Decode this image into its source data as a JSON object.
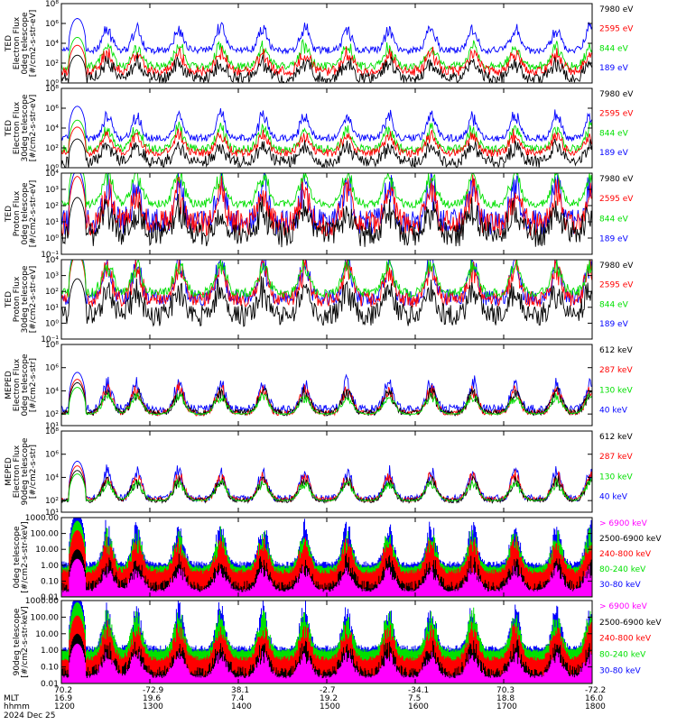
{
  "date_label": "2024 Dec 25",
  "footer": {
    "row_labels": [
      "",
      "MLT",
      "hhmm"
    ],
    "ticks": [
      {
        "t": 1200,
        "lat": "70.2",
        "mlt": "16.9",
        "hhmm": "1200"
      },
      {
        "t": 1300,
        "lat": "-72.9",
        "mlt": "19.6",
        "hhmm": "1300"
      },
      {
        "t": 1400,
        "lat": "38.1",
        "mlt": "7.4",
        "hhmm": "1400"
      },
      {
        "t": 1500,
        "lat": "-2.7",
        "mlt": "19.2",
        "hhmm": "1500"
      },
      {
        "t": 1600,
        "lat": "-34.1",
        "mlt": "7.5",
        "hhmm": "1600"
      },
      {
        "t": 1700,
        "lat": "70.3",
        "mlt": "18.8",
        "hhmm": "1700"
      },
      {
        "t": 1800,
        "lat": "-72.2",
        "mlt": "16.0",
        "hhmm": "1800"
      }
    ]
  },
  "colors": {
    "black": "#000000",
    "red": "#ff0000",
    "green": "#00e000",
    "blue": "#0000ff",
    "magenta": "#ff00ff"
  },
  "chart_data": [
    {
      "type": "line",
      "ylabel": [
        "TED",
        "Electron Flux",
        "0deg telescope",
        "[#/cm2-s-str-eV]"
      ],
      "ytick_labels": [
        "10⁰",
        "10²",
        "10⁴",
        "10⁶",
        "10⁸"
      ],
      "ytick_exponents": [
        0,
        2,
        4,
        6,
        8
      ],
      "ylim_exp": [
        0,
        8
      ],
      "xlim": [
        1200,
        1800
      ],
      "legend": [
        {
          "label": "7980 eV",
          "color": "#000000"
        },
        {
          "label": "2595 eV",
          "color": "#ff0000"
        },
        {
          "label": "844 eV",
          "color": "#00e000"
        },
        {
          "label": "189 eV",
          "color": "#0000ff"
        }
      ],
      "series": [
        {
          "color": "#0000ff",
          "base": 3.3,
          "noise": 0.35
        },
        {
          "color": "#00e000",
          "base": 1.7,
          "noise": 0.4
        },
        {
          "color": "#ff0000",
          "base": 1.2,
          "noise": 0.5
        },
        {
          "color": "#000000",
          "base": 0.5,
          "noise": 0.6
        }
      ]
    },
    {
      "type": "line",
      "ylabel": [
        "TED",
        "Electron Flux",
        "30deg telescope",
        "[#/cm2-s-str-eV]"
      ],
      "ytick_labels": [
        "10⁰",
        "10²",
        "10⁴",
        "10⁶",
        "10⁸"
      ],
      "ytick_exponents": [
        0,
        2,
        4,
        6,
        8
      ],
      "ylim_exp": [
        0,
        8
      ],
      "xlim": [
        1200,
        1800
      ],
      "legend": [
        {
          "label": "7980 eV",
          "color": "#000000"
        },
        {
          "label": "2595 eV",
          "color": "#ff0000"
        },
        {
          "label": "844 eV",
          "color": "#00e000"
        },
        {
          "label": "189 eV",
          "color": "#0000ff"
        }
      ],
      "series": [
        {
          "color": "#0000ff",
          "base": 3.0,
          "noise": 0.35
        },
        {
          "color": "#00e000",
          "base": 1.9,
          "noise": 0.4
        },
        {
          "color": "#ff0000",
          "base": 1.5,
          "noise": 0.4
        },
        {
          "color": "#000000",
          "base": 0.6,
          "noise": 0.6
        }
      ]
    },
    {
      "type": "line",
      "ylabel": [
        "TED",
        "Proton Flux",
        "0deg telescope",
        "[#/cm2-s-str-eV]"
      ],
      "ytick_labels": [
        "10⁻¹",
        "10⁰",
        "10¹",
        "10²",
        "10³",
        "10⁴"
      ],
      "ytick_exponents": [
        -1,
        0,
        1,
        2,
        3,
        4
      ],
      "ylim_exp": [
        -1,
        4
      ],
      "xlim": [
        1200,
        1800
      ],
      "legend": [
        {
          "label": "7980 eV",
          "color": "#000000"
        },
        {
          "label": "2595 eV",
          "color": "#ff0000"
        },
        {
          "label": "844 eV",
          "color": "#00e000"
        },
        {
          "label": "189 eV",
          "color": "#0000ff"
        }
      ],
      "series": [
        {
          "color": "#0000ff",
          "base": 1.0,
          "noise": 0.8
        },
        {
          "color": "#ff0000",
          "base": 0.9,
          "noise": 0.8
        },
        {
          "color": "#00e000",
          "base": 2.1,
          "noise": 0.25
        },
        {
          "color": "#000000",
          "base": 0.2,
          "noise": 0.8
        }
      ]
    },
    {
      "type": "line",
      "ylabel": [
        "TED",
        "Proton Flux",
        "30deg telescope",
        "[#/cm2-s-str-eV]"
      ],
      "ytick_labels": [
        "10⁻¹",
        "10⁰",
        "10¹",
        "10²",
        "10³",
        "10⁴"
      ],
      "ytick_exponents": [
        -1,
        0,
        1,
        2,
        3,
        4
      ],
      "ylim_exp": [
        -1,
        4
      ],
      "xlim": [
        1200,
        1800
      ],
      "legend": [
        {
          "label": "7980 eV",
          "color": "#000000"
        },
        {
          "label": "2595 eV",
          "color": "#ff0000"
        },
        {
          "label": "844 eV",
          "color": "#00e000"
        },
        {
          "label": "189 eV",
          "color": "#0000ff"
        }
      ],
      "series": [
        {
          "color": "#0000ff",
          "base": 1.6,
          "noise": 0.5
        },
        {
          "color": "#ff0000",
          "base": 1.5,
          "noise": 0.5
        },
        {
          "color": "#00e000",
          "base": 1.9,
          "noise": 0.3
        },
        {
          "color": "#000000",
          "base": 0.5,
          "noise": 0.7
        }
      ]
    },
    {
      "type": "line",
      "ylabel": [
        "MEPED",
        "Electron Flux",
        "0deg telescope",
        "[#/cm2-s-str]"
      ],
      "ytick_labels": [
        "10¹",
        "10²",
        "10⁴",
        "10⁶",
        "10⁸"
      ],
      "ytick_exponents": [
        1,
        2,
        4,
        6,
        8
      ],
      "ylim_exp": [
        1,
        8
      ],
      "xlim": [
        1200,
        1800
      ],
      "legend": [
        {
          "label": "612 keV",
          "color": "#000000"
        },
        {
          "label": "287 keV",
          "color": "#ff0000"
        },
        {
          "label": "130 keV",
          "color": "#00e000"
        },
        {
          "label": "40 keV",
          "color": "#0000ff"
        }
      ],
      "series": [
        {
          "color": "#0000ff",
          "base": 2.4,
          "noise": 0.4
        },
        {
          "color": "#ff0000",
          "base": 2.1,
          "noise": 0.25
        },
        {
          "color": "#000000",
          "base": 2.1,
          "noise": 0.25
        },
        {
          "color": "#00e000",
          "base": 2.0,
          "noise": 0.05
        }
      ]
    },
    {
      "type": "line",
      "ylabel": [
        "MEPED",
        "Electron Flux",
        "90deg telescope",
        "[#/cm2-s-str]"
      ],
      "ytick_labels": [
        "10¹",
        "10²",
        "10⁴",
        "10⁶",
        "10⁸"
      ],
      "ytick_exponents": [
        1,
        2,
        4,
        6,
        8
      ],
      "ylim_exp": [
        1,
        8
      ],
      "xlim": [
        1200,
        1800
      ],
      "legend": [
        {
          "label": "612 keV",
          "color": "#000000"
        },
        {
          "label": "287 keV",
          "color": "#ff0000"
        },
        {
          "label": "130 keV",
          "color": "#00e000"
        },
        {
          "label": "40 keV",
          "color": "#0000ff"
        }
      ],
      "series": [
        {
          "color": "#0000ff",
          "base": 2.2,
          "noise": 0.3
        },
        {
          "color": "#ff0000",
          "base": 2.1,
          "noise": 0.2
        },
        {
          "color": "#000000",
          "base": 2.0,
          "noise": 0.2
        },
        {
          "color": "#00e000",
          "base": 2.0,
          "noise": 0.05
        }
      ]
    },
    {
      "type": "scatter",
      "ylabel": [
        "0deg telescope",
        "[#/cm2-s-str-keV]"
      ],
      "ytick_labels": [
        "0.01",
        "0.10",
        "1.00",
        "10.00",
        "100.00",
        "1000.00"
      ],
      "ytick_exponents": [
        -2,
        -1,
        0,
        1,
        2,
        3
      ],
      "ylim_exp": [
        -2,
        3
      ],
      "xlim": [
        1200,
        1800
      ],
      "legend": [
        {
          "label": "> 6900 keV",
          "color": "#ff00ff"
        },
        {
          "label": "2500-6900 keV",
          "color": "#000000"
        },
        {
          "label": "240-800 keV",
          "color": "#ff0000"
        },
        {
          "label": "80-240 keV",
          "color": "#00e000"
        },
        {
          "label": "30-80 keV",
          "color": "#0000ff"
        }
      ],
      "series": [
        {
          "color": "#0000ff",
          "base": 0.1,
          "noise": 0.15
        },
        {
          "color": "#00e000",
          "base": -0.1,
          "noise": 0.1
        },
        {
          "color": "#ff0000",
          "base": -0.4,
          "noise": 0.15
        },
        {
          "color": "#000000",
          "base": -1.3,
          "noise": 0.3
        },
        {
          "color": "#ff00ff",
          "base": -1.6,
          "noise": 0.1
        }
      ]
    },
    {
      "type": "scatter",
      "ylabel": [
        "90deg telescope",
        "[#/cm2-s-str-keV]"
      ],
      "ytick_labels": [
        "0.01",
        "0.10",
        "1.00",
        "10.00",
        "100.00",
        "1000.00"
      ],
      "ytick_exponents": [
        -2,
        -1,
        0,
        1,
        2,
        3
      ],
      "ylim_exp": [
        -2,
        3
      ],
      "xlim": [
        1200,
        1800
      ],
      "legend": [
        {
          "label": "> 6900 keV",
          "color": "#ff00ff"
        },
        {
          "label": "2500-6900 keV",
          "color": "#000000"
        },
        {
          "label": "240-800 keV",
          "color": "#ff0000"
        },
        {
          "label": "80-240 keV",
          "color": "#00e000"
        },
        {
          "label": "30-80 keV",
          "color": "#0000ff"
        }
      ],
      "series": [
        {
          "color": "#0000ff",
          "base": 0.15,
          "noise": 0.15
        },
        {
          "color": "#00e000",
          "base": 0.0,
          "noise": 0.1
        },
        {
          "color": "#ff0000",
          "base": -0.5,
          "noise": 0.15
        },
        {
          "color": "#000000",
          "base": -1.3,
          "noise": 0.3
        },
        {
          "color": "#ff00ff",
          "base": -1.6,
          "noise": 0.1
        }
      ]
    }
  ]
}
